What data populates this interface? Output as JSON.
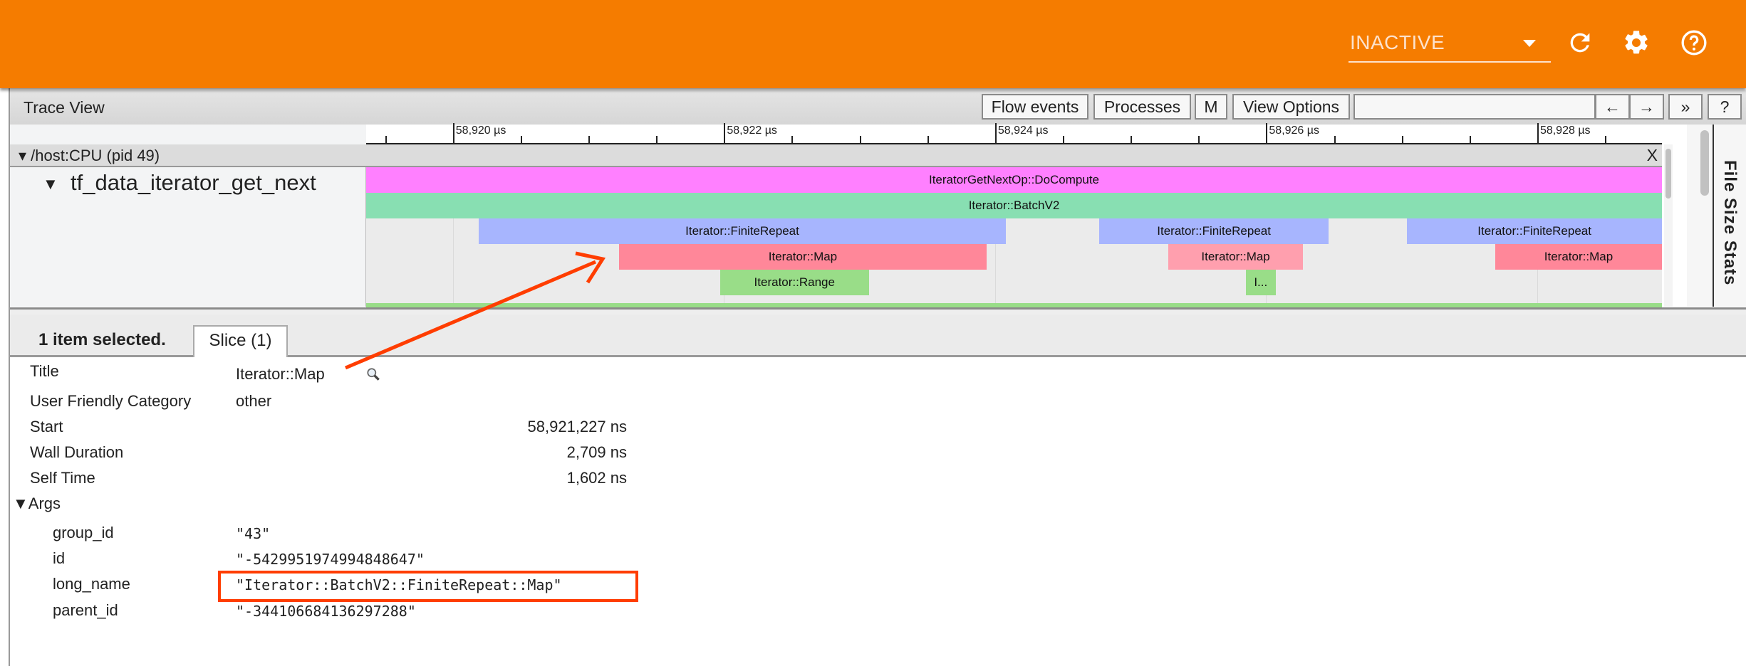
{
  "topbar": {
    "run_selector": "INACTIVE",
    "icons": [
      "refresh-icon",
      "gear-icon",
      "help-icon"
    ],
    "color": "#f57c00"
  },
  "toolbar": {
    "title": "Trace View",
    "buttons": {
      "flow_events": "Flow events",
      "processes": "Processes",
      "m": "M",
      "view_options": "View Options",
      "prev": "←",
      "next": "→",
      "more": "»",
      "help": "?"
    },
    "search_value": ""
  },
  "ruler": {
    "unit": "µs",
    "labels": [
      "58,920 µs",
      "58,922 µs",
      "58,924 µs",
      "58,926 µs",
      "58,928 µs"
    ],
    "label_values": [
      58920,
      58922,
      58924,
      58926,
      58928
    ],
    "view_range_us": [
      58919.36,
      58928.92
    ]
  },
  "process": {
    "label": "/host:CPU (pid 49)",
    "close": "X"
  },
  "track": {
    "name": "tf_data_iterator_get_next",
    "slices": [
      {
        "name": "IteratorGetNextOp::DoCompute",
        "label": "IteratorGetNextOp::DoCompute",
        "depth": 0,
        "start_us": 58919.0,
        "end_us": 58929.5,
        "color": "#ff80ff"
      },
      {
        "name": "Iterator::BatchV2",
        "label": "Iterator::BatchV2",
        "depth": 1,
        "start_us": 58919.0,
        "end_us": 58929.5,
        "color": "#88dfb2"
      },
      {
        "name": "Iterator::FiniteRepeat",
        "label": "Iterator::FiniteRepeat",
        "depth": 2,
        "start_us": 58920.19,
        "end_us": 58924.08,
        "color": "#a7b5fe"
      },
      {
        "name": "Iterator::FiniteRepeat",
        "label": "Iterator::FiniteRepeat",
        "depth": 2,
        "start_us": 58924.77,
        "end_us": 58926.46,
        "color": "#a7b5fe"
      },
      {
        "name": "Iterator::FiniteRepeat",
        "label": "Iterator::FiniteRepeat",
        "depth": 2,
        "start_us": 58927.04,
        "end_us": 58929.5,
        "color": "#a7b5fe"
      },
      {
        "name": "Iterator::Map",
        "label": "Iterator::Map",
        "depth": 3,
        "start_us": 58921.227,
        "end_us": 58923.936,
        "color": "#ff8799"
      },
      {
        "name": "Iterator::Map",
        "label": "Iterator::Map",
        "depth": 3,
        "start_us": 58925.28,
        "end_us": 58926.27,
        "color": "#ff9fae"
      },
      {
        "name": "Iterator::Map",
        "label": "Iterator::Map",
        "depth": 3,
        "start_us": 58927.69,
        "end_us": 58929.5,
        "color": "#ff8799"
      },
      {
        "name": "Iterator::Range",
        "label": "Iterator::Range",
        "depth": 4,
        "start_us": 58921.97,
        "end_us": 58923.07,
        "color": "#99dd88"
      },
      {
        "name": "Iterator::Range",
        "label": "I...",
        "depth": 4,
        "start_us": 58925.85,
        "end_us": 58926.07,
        "color": "#99dd88"
      }
    ]
  },
  "side_panel": {
    "label": "File Size Stats"
  },
  "analysis": {
    "selection": "1 item selected.",
    "tab": "Slice (1)",
    "rows": {
      "title_label": "Title",
      "title_value": "Iterator::Map",
      "category_label": "User Friendly Category",
      "category_value": "other",
      "start_label": "Start",
      "start_value": "58,921,227 ns",
      "wall_label": "Wall Duration",
      "wall_value": "2,709 ns",
      "self_label": "Self Time",
      "self_value": "1,602 ns"
    },
    "args": {
      "header": "Args",
      "group_id_label": "group_id",
      "group_id_value": "\"43\"",
      "id_label": "id",
      "id_value": "\"-5429951974994848647\"",
      "long_name_label": "long_name",
      "long_name_value": "\"Iterator::BatchV2::FiniteRepeat::Map\"",
      "parent_id_label": "parent_id",
      "parent_id_value": "\"-344106684136297288\""
    }
  },
  "annotation": {
    "color": "#ff3d00"
  }
}
